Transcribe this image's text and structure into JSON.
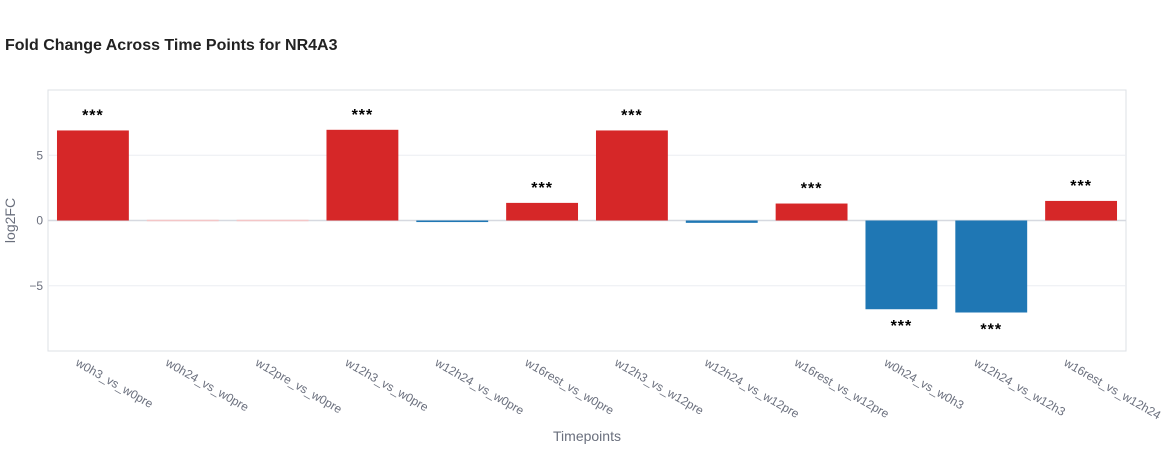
{
  "chart_data": {
    "type": "bar",
    "title": "Fold Change Across Time Points for NR4A3",
    "xlabel": "Timepoints",
    "ylabel": "log2FC",
    "ylim": [
      -10,
      10
    ],
    "yticks": [
      -5,
      0,
      5
    ],
    "ytick_labels": [
      "−5",
      "0",
      "5"
    ],
    "grid": true,
    "categories": [
      "w0h3_vs_w0pre",
      "w0h24_vs_w0pre",
      "w12pre_vs_w0pre",
      "w12h3_vs_w0pre",
      "w12h24_vs_w0pre",
      "w16rest_vs_w0pre",
      "w12h3_vs_w12pre",
      "w12h24_vs_w12pre",
      "w16rest_vs_w12pre",
      "w0h24_vs_w0h3",
      "w12h24_vs_w12h3",
      "w16rest_vs_w12h24"
    ],
    "values": [
      6.9,
      0.08,
      0.08,
      6.95,
      -0.12,
      1.35,
      6.9,
      -0.18,
      1.3,
      -6.8,
      -7.05,
      1.5
    ],
    "significance": [
      "***",
      "",
      "",
      "***",
      "",
      "***",
      "***",
      "",
      "***",
      "***",
      "***",
      "***"
    ],
    "colors": {
      "up_significant": "#d62728",
      "up_nonsignificant": "#f4c6c7",
      "down_significant": "#1f77b4",
      "down_nonsignificant": "#1f77b4"
    }
  }
}
